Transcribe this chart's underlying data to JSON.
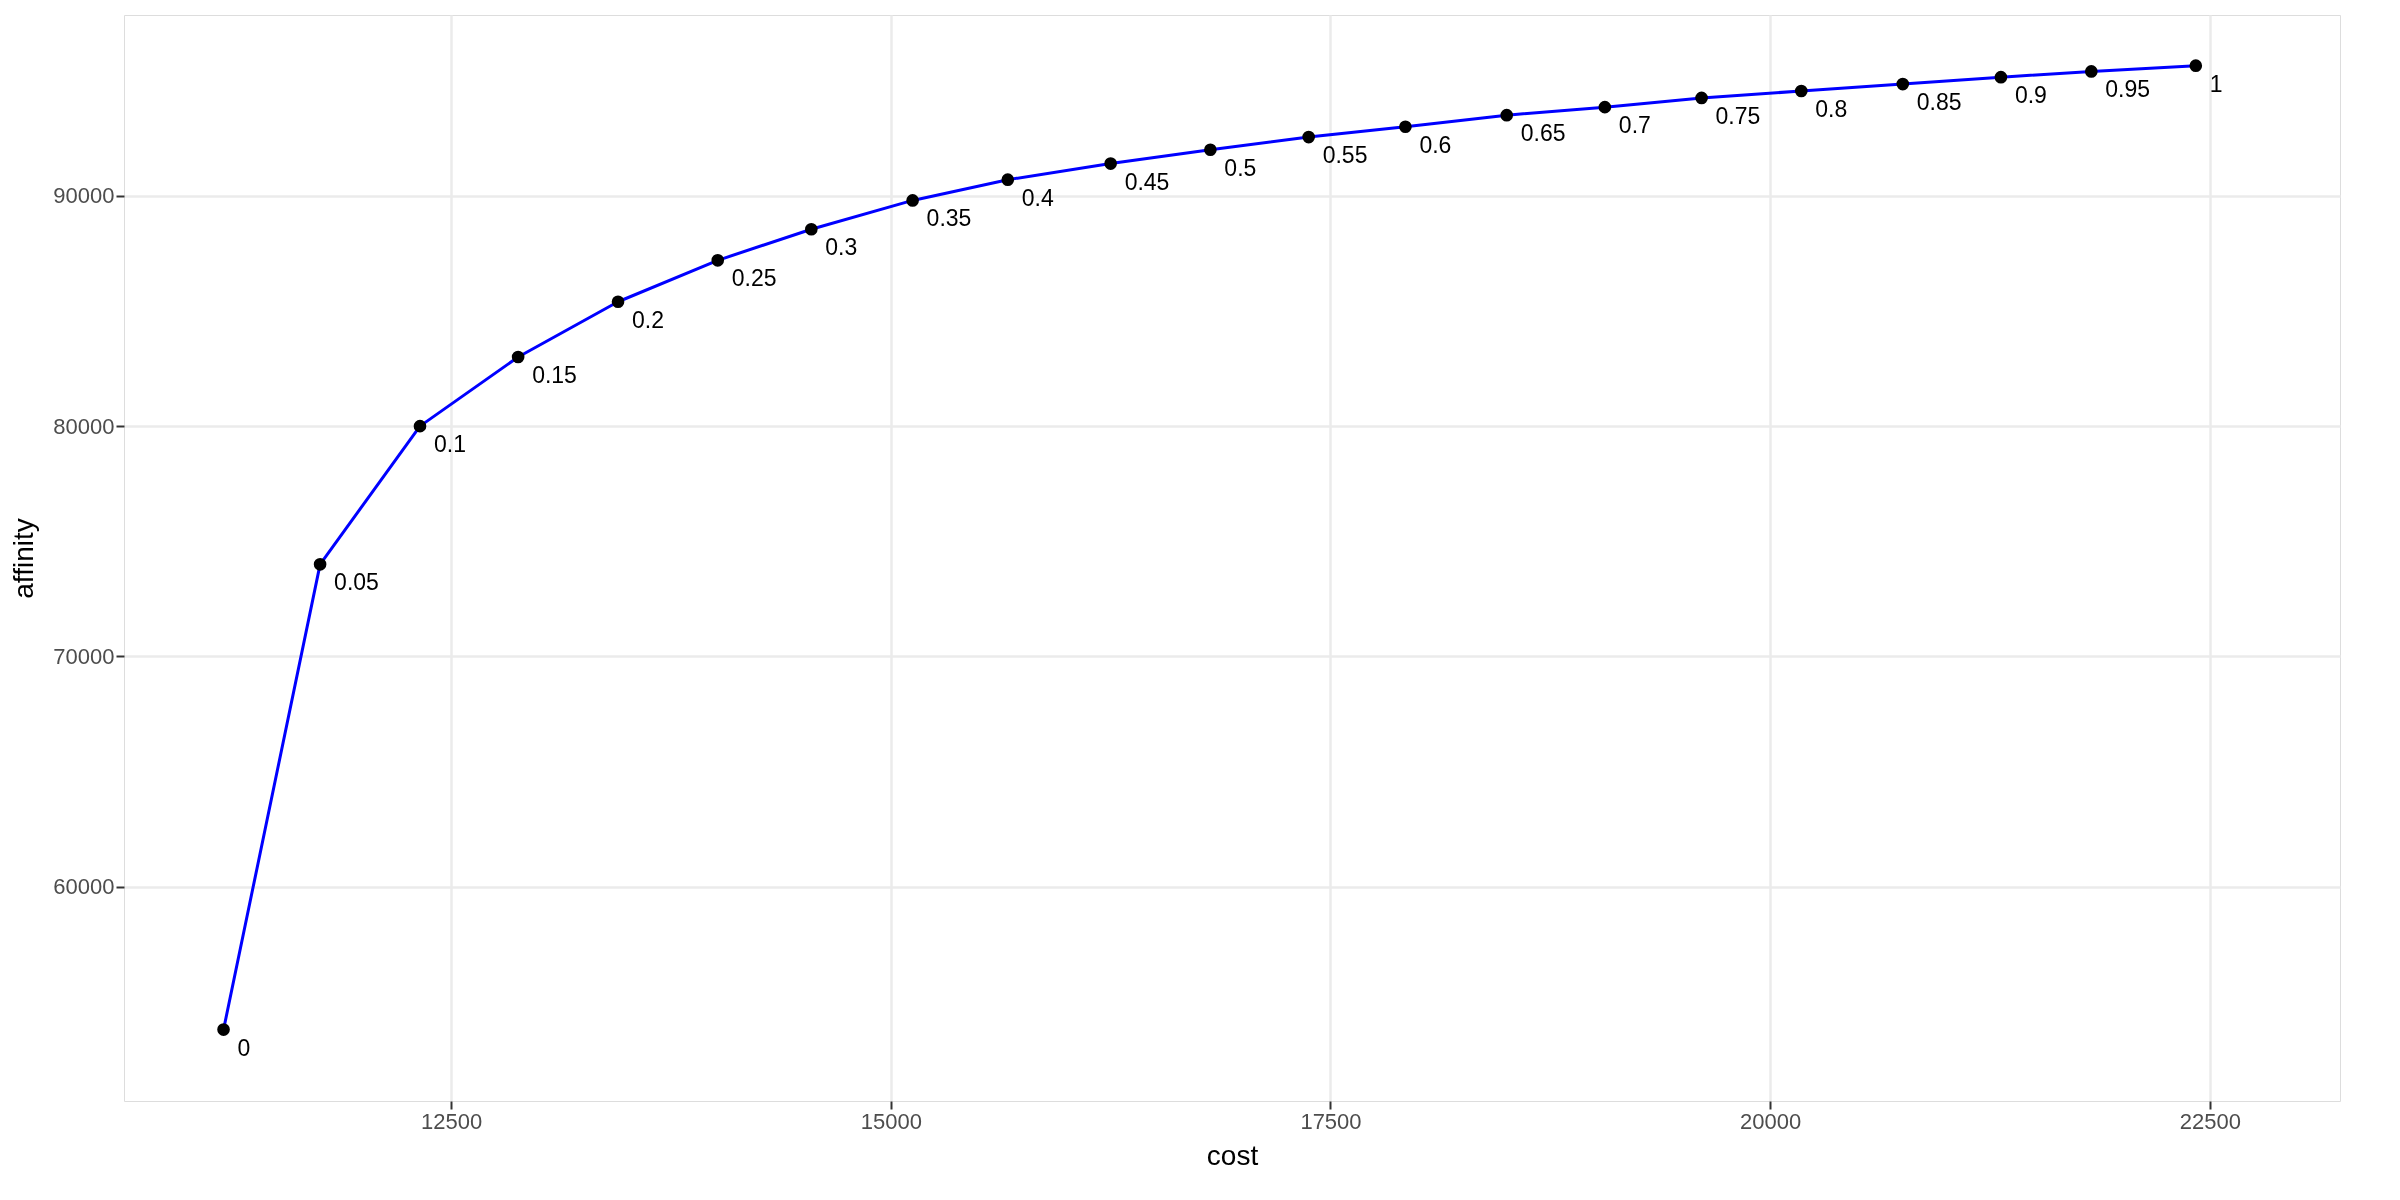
{
  "chart_data": {
    "type": "line",
    "xlabel": "cost",
    "ylabel": "affinity",
    "x": [
      11206,
      11755,
      12323,
      12881,
      13449,
      14016,
      14548,
      15124,
      15665,
      16250,
      16817,
      17376,
      17926,
      18502,
      19060,
      19610,
      20177,
      20754,
      21312,
      21826,
      22420
    ],
    "series": [
      {
        "color": "#0000ff",
        "values": [
          53800,
          74000,
          80000,
          83000,
          85400,
          87200,
          88550,
          89800,
          90700,
          91400,
          92000,
          92550,
          93000,
          93500,
          93850,
          94250,
          94550,
          94850,
          95150,
          95400,
          95650
        ]
      }
    ],
    "marker": "circle",
    "line_style": "solid",
    "xlim": [
      10640,
      23240
    ],
    "ylim": [
      50700,
      97850
    ],
    "xticks": [
      12500,
      15000,
      17500,
      20000,
      22500
    ],
    "yticks": [
      60000,
      70000,
      80000,
      90000
    ],
    "grid": true,
    "annotations": [
      {
        "text": "0",
        "x": 11206,
        "y": 53800
      },
      {
        "text": "0.05",
        "x": 11755,
        "y": 74000
      },
      {
        "text": "0.1",
        "x": 12323,
        "y": 80000
      },
      {
        "text": "0.15",
        "x": 12881,
        "y": 83000
      },
      {
        "text": "0.2",
        "x": 13449,
        "y": 85400
      },
      {
        "text": "0.25",
        "x": 14016,
        "y": 87200
      },
      {
        "text": "0.3",
        "x": 14548,
        "y": 88550
      },
      {
        "text": "0.35",
        "x": 15124,
        "y": 89800
      },
      {
        "text": "0.4",
        "x": 15665,
        "y": 90700
      },
      {
        "text": "0.45",
        "x": 16250,
        "y": 91400
      },
      {
        "text": "0.5",
        "x": 16817,
        "y": 92000
      },
      {
        "text": "0.55",
        "x": 17376,
        "y": 92550
      },
      {
        "text": "0.6",
        "x": 17926,
        "y": 93000
      },
      {
        "text": "0.65",
        "x": 18502,
        "y": 93500
      },
      {
        "text": "0.7",
        "x": 19060,
        "y": 93850
      },
      {
        "text": "0.75",
        "x": 19610,
        "y": 94250
      },
      {
        "text": "0.8",
        "x": 20177,
        "y": 94550
      },
      {
        "text": "0.85",
        "x": 20754,
        "y": 94850
      },
      {
        "text": "0.9",
        "x": 21312,
        "y": 95150
      },
      {
        "text": "0.95",
        "x": 21826,
        "y": 95400
      },
      {
        "text": "1",
        "x": 22420,
        "y": 95650
      }
    ]
  }
}
